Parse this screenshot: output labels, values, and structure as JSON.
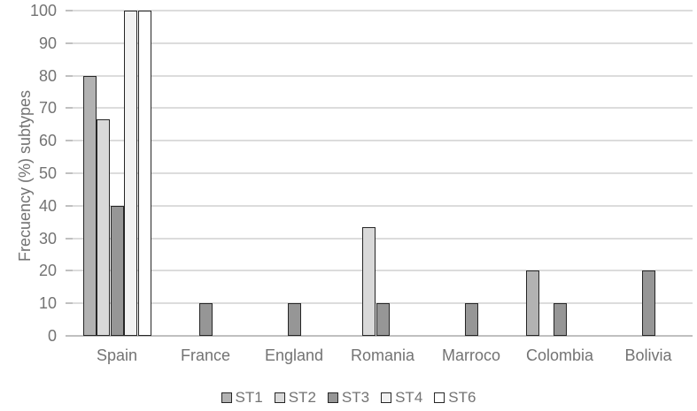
{
  "figure": {
    "y_axis_title": "Frecuency (%) subtypes"
  },
  "colors": {
    "st1": "#b2b2b2",
    "st2": "#d9d9d9",
    "st3": "#969696",
    "st4": "#f2f2f2",
    "st6": "#ffffff",
    "bar_border": "#262626",
    "gridline": "#dcdcdc",
    "axis_line": "#c0c0c0",
    "text": "#737373"
  },
  "chart_data": {
    "type": "bar",
    "title": "",
    "xlabel": "",
    "ylabel": "Frecuency (%) subtypes",
    "ylim": [
      0,
      100
    ],
    "ytick_step": 10,
    "grid": true,
    "legend_position": "bottom",
    "categories": [
      "Spain",
      "France",
      "England",
      "Romania",
      "Marroco",
      "Colombia",
      "Bolivia"
    ],
    "series": [
      {
        "name": "ST1",
        "color": "#b2b2b2",
        "values": [
          80,
          null,
          null,
          null,
          null,
          20,
          null
        ]
      },
      {
        "name": "ST2",
        "color": "#d9d9d9",
        "values": [
          66.7,
          null,
          null,
          33.3,
          null,
          null,
          null
        ]
      },
      {
        "name": "ST3",
        "color": "#969696",
        "values": [
          40,
          10,
          10,
          10,
          10,
          10,
          20
        ]
      },
      {
        "name": "ST4",
        "color": "#f2f2f2",
        "values": [
          100,
          null,
          null,
          null,
          null,
          null,
          null
        ]
      },
      {
        "name": "ST6",
        "color": "#ffffff",
        "values": [
          100,
          null,
          null,
          null,
          null,
          null,
          null
        ]
      }
    ]
  }
}
